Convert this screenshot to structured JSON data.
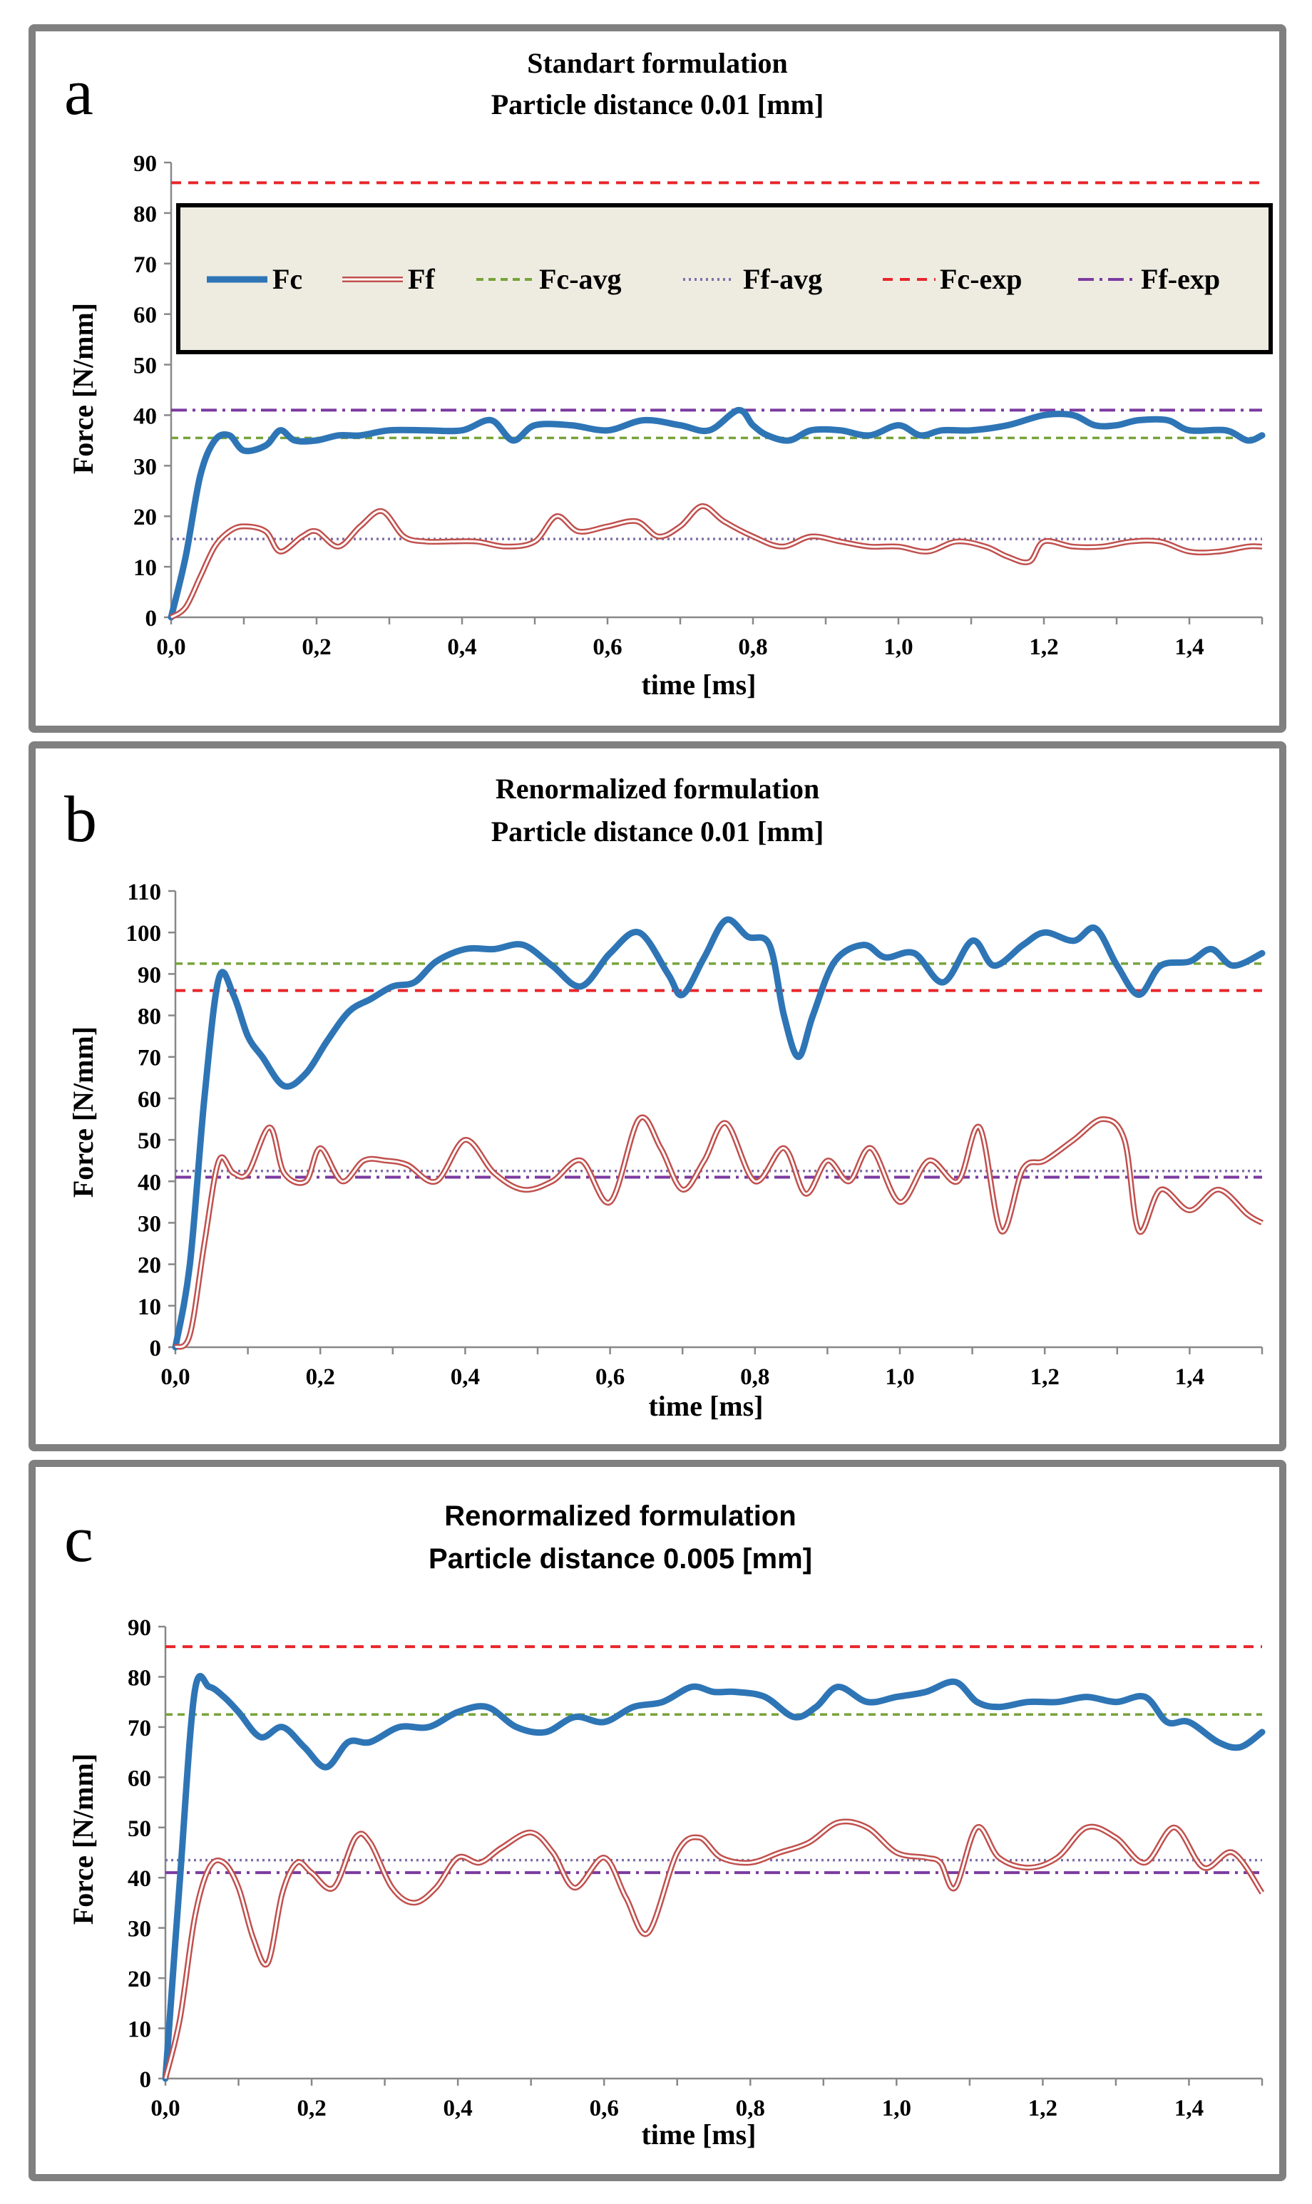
{
  "panels": [
    {
      "letter": "a",
      "title_line1": "Standart formulation",
      "title_line2": "Particle distance 0.01 [mm]",
      "title_font": "serif",
      "ylabel": "Force [N/mm]",
      "xlabel": "time [ms]",
      "show_legend": true
    },
    {
      "letter": "b",
      "title_line1": "Renormalized formulation",
      "title_line2": "Particle distance 0.01 [mm]",
      "title_font": "serif",
      "ylabel": "Force [N/mm]",
      "xlabel": "time [ms]",
      "show_legend": false
    },
    {
      "letter": "c",
      "title_line1": "Renormalized formulation",
      "title_line2": "Particle distance 0.005 [mm]",
      "title_font": "sans",
      "ylabel": "Force [N/mm]",
      "xlabel": "time [ms]",
      "show_legend": false
    }
  ],
  "legend": {
    "entries": [
      {
        "key": "Fc",
        "label": "Fc"
      },
      {
        "key": "Ff",
        "label": "Ff"
      },
      {
        "key": "Fc_avg",
        "label": "Fc-avg"
      },
      {
        "key": "Ff_avg",
        "label": "Ff-avg"
      },
      {
        "key": "Fc_exp",
        "label": "Fc-exp"
      },
      {
        "key": "Ff_exp",
        "label": "Ff-exp"
      }
    ]
  },
  "colors": {
    "Fc": "#2e75b6",
    "Ff": "#c0504d",
    "Fc_avg": "#77a33a",
    "Ff_avg": "#7f6fa8",
    "Fc_exp": "#e8262b",
    "Ff_exp": "#7b3aa0",
    "legend_bg": "#eeece1",
    "frame": "#808080"
  },
  "chart_data": [
    {
      "type": "line",
      "title": "Standart formulation Particle distance 0.01 [mm]",
      "xlabel": "time [ms]",
      "ylabel": "Force [N/mm]",
      "xlim": [
        0,
        1.5
      ],
      "ylim": [
        0,
        90
      ],
      "xticks": [
        "0,0",
        "0,2",
        "0,4",
        "0,6",
        "0,8",
        "1,0",
        "1,2",
        "1,4"
      ],
      "yticks": [
        "0",
        "10",
        "20",
        "30",
        "40",
        "50",
        "60",
        "70",
        "80",
        "90"
      ],
      "reference_lines": {
        "Fc_avg": 35.5,
        "Ff_avg": 15.5,
        "Fc_exp": 86,
        "Ff_exp": 41
      },
      "series": [
        {
          "name": "Fc",
          "x": [
            0,
            0.02,
            0.04,
            0.06,
            0.08,
            0.1,
            0.13,
            0.15,
            0.17,
            0.2,
            0.23,
            0.26,
            0.3,
            0.35,
            0.4,
            0.44,
            0.47,
            0.5,
            0.55,
            0.6,
            0.65,
            0.7,
            0.74,
            0.78,
            0.8,
            0.82,
            0.85,
            0.88,
            0.92,
            0.96,
            1.0,
            1.03,
            1.06,
            1.1,
            1.15,
            1.2,
            1.24,
            1.27,
            1.3,
            1.33,
            1.37,
            1.4,
            1.45,
            1.48,
            1.5
          ],
          "y": [
            0,
            12,
            28,
            35,
            36,
            33,
            34,
            37,
            35,
            35,
            36,
            36,
            37,
            37,
            37,
            39,
            35,
            38,
            38,
            37,
            39,
            38,
            37,
            41,
            38,
            36,
            35,
            37,
            37,
            36,
            38,
            36,
            37,
            37,
            38,
            40,
            40,
            38,
            38,
            39,
            39,
            37,
            37,
            35,
            36
          ]
        },
        {
          "name": "Ff",
          "x": [
            0,
            0.02,
            0.04,
            0.06,
            0.08,
            0.1,
            0.13,
            0.15,
            0.18,
            0.2,
            0.23,
            0.26,
            0.29,
            0.32,
            0.35,
            0.38,
            0.42,
            0.46,
            0.5,
            0.53,
            0.56,
            0.6,
            0.64,
            0.67,
            0.7,
            0.73,
            0.76,
            0.8,
            0.84,
            0.88,
            0.92,
            0.96,
            1.0,
            1.04,
            1.08,
            1.12,
            1.15,
            1.18,
            1.2,
            1.24,
            1.28,
            1.32,
            1.36,
            1.4,
            1.44,
            1.48,
            1.5
          ],
          "y": [
            0,
            2,
            8,
            14,
            17,
            18,
            17,
            13,
            16,
            17,
            14,
            18,
            21,
            16,
            15,
            15,
            15,
            14,
            15,
            20,
            17,
            18,
            19,
            16,
            18,
            22,
            19,
            16,
            14,
            16,
            15,
            14,
            14,
            13,
            15,
            14,
            12,
            11,
            15,
            14,
            14,
            15,
            15,
            13,
            13,
            14,
            14
          ]
        }
      ]
    },
    {
      "type": "line",
      "title": "Renormalized formulation Particle distance 0.01 [mm]",
      "xlabel": "time [ms]",
      "ylabel": "Force [N/mm]",
      "xlim": [
        0,
        1.5
      ],
      "ylim": [
        0,
        110
      ],
      "xticks": [
        "0,0",
        "0,2",
        "0,4",
        "0,6",
        "0,8",
        "1,0",
        "1,2",
        "1,4"
      ],
      "yticks": [
        "0",
        "10",
        "20",
        "30",
        "40",
        "50",
        "60",
        "70",
        "80",
        "90",
        "100",
        "110"
      ],
      "reference_lines": {
        "Fc_avg": 92.5,
        "Ff_avg": 42.5,
        "Fc_exp": 86,
        "Ff_exp": 41
      },
      "series": [
        {
          "name": "Fc",
          "x": [
            0,
            0.02,
            0.04,
            0.06,
            0.08,
            0.1,
            0.12,
            0.15,
            0.18,
            0.21,
            0.24,
            0.27,
            0.3,
            0.33,
            0.36,
            0.4,
            0.44,
            0.48,
            0.52,
            0.56,
            0.6,
            0.64,
            0.68,
            0.7,
            0.73,
            0.76,
            0.79,
            0.82,
            0.84,
            0.86,
            0.88,
            0.91,
            0.95,
            0.98,
            1.02,
            1.06,
            1.1,
            1.13,
            1.17,
            1.2,
            1.24,
            1.27,
            1.3,
            1.33,
            1.36,
            1.4,
            1.43,
            1.46,
            1.5
          ],
          "y": [
            0,
            20,
            60,
            89,
            85,
            75,
            70,
            63,
            66,
            74,
            81,
            84,
            87,
            88,
            93,
            96,
            96,
            97,
            92,
            87,
            95,
            100,
            90,
            85,
            94,
            103,
            99,
            97,
            80,
            70,
            80,
            93,
            97,
            94,
            95,
            88,
            98,
            92,
            97,
            100,
            98,
            101,
            92,
            85,
            92,
            93,
            96,
            92,
            95
          ]
        },
        {
          "name": "Ff",
          "x": [
            0,
            0.02,
            0.04,
            0.06,
            0.08,
            0.1,
            0.13,
            0.15,
            0.18,
            0.2,
            0.23,
            0.26,
            0.29,
            0.32,
            0.36,
            0.4,
            0.44,
            0.48,
            0.52,
            0.56,
            0.6,
            0.64,
            0.67,
            0.7,
            0.73,
            0.76,
            0.8,
            0.84,
            0.87,
            0.9,
            0.93,
            0.96,
            1.0,
            1.04,
            1.08,
            1.11,
            1.14,
            1.17,
            1.2,
            1.24,
            1.28,
            1.31,
            1.33,
            1.36,
            1.4,
            1.44,
            1.48,
            1.5
          ],
          "y": [
            0,
            3,
            25,
            45,
            42,
            42,
            53,
            42,
            40,
            48,
            40,
            45,
            45,
            44,
            40,
            50,
            42,
            38,
            40,
            45,
            35,
            55,
            48,
            38,
            45,
            54,
            40,
            48,
            37,
            45,
            40,
            48,
            35,
            45,
            40,
            53,
            28,
            43,
            45,
            50,
            55,
            50,
            28,
            38,
            33,
            38,
            32,
            30
          ]
        }
      ]
    },
    {
      "type": "line",
      "title": "Renormalized formulation Particle distance 0.005 [mm]",
      "xlabel": "time [ms]",
      "ylabel": "Force [N/mm]",
      "xlim": [
        0,
        1.5
      ],
      "ylim": [
        0,
        90
      ],
      "xticks": [
        "0,0",
        "0,2",
        "0,4",
        "0,6",
        "0,8",
        "1,0",
        "1,2",
        "1,4"
      ],
      "yticks": [
        "0",
        "10",
        "20",
        "30",
        "40",
        "50",
        "60",
        "70",
        "80",
        "90"
      ],
      "reference_lines": {
        "Fc_avg": 72.5,
        "Ff_avg": 43.5,
        "Fc_exp": 86,
        "Ff_exp": 41
      },
      "series": [
        {
          "name": "Fc",
          "x": [
            0,
            0.02,
            0.04,
            0.06,
            0.08,
            0.1,
            0.13,
            0.16,
            0.19,
            0.22,
            0.25,
            0.28,
            0.32,
            0.36,
            0.4,
            0.44,
            0.48,
            0.52,
            0.56,
            0.6,
            0.64,
            0.68,
            0.72,
            0.75,
            0.78,
            0.82,
            0.86,
            0.89,
            0.92,
            0.96,
            1.0,
            1.04,
            1.08,
            1.11,
            1.14,
            1.18,
            1.22,
            1.26,
            1.3,
            1.34,
            1.37,
            1.4,
            1.44,
            1.47,
            1.5
          ],
          "y": [
            0,
            40,
            77,
            78,
            76,
            73,
            68,
            70,
            66,
            62,
            67,
            67,
            70,
            70,
            73,
            74,
            70,
            69,
            72,
            71,
            74,
            75,
            78,
            77,
            77,
            76,
            72,
            74,
            78,
            75,
            76,
            77,
            79,
            75,
            74,
            75,
            75,
            76,
            75,
            76,
            71,
            71,
            67,
            66,
            69
          ]
        },
        {
          "name": "Ff",
          "x": [
            0,
            0.02,
            0.04,
            0.06,
            0.08,
            0.1,
            0.12,
            0.14,
            0.16,
            0.18,
            0.2,
            0.23,
            0.26,
            0.28,
            0.31,
            0.34,
            0.37,
            0.4,
            0.43,
            0.46,
            0.5,
            0.53,
            0.56,
            0.6,
            0.63,
            0.66,
            0.7,
            0.73,
            0.76,
            0.8,
            0.84,
            0.88,
            0.92,
            0.96,
            1.0,
            1.04,
            1.06,
            1.08,
            1.11,
            1.14,
            1.18,
            1.22,
            1.26,
            1.3,
            1.34,
            1.38,
            1.42,
            1.46,
            1.5
          ],
          "y": [
            0,
            12,
            32,
            42,
            43,
            38,
            28,
            23,
            37,
            43,
            41,
            38,
            48,
            47,
            38,
            35,
            38,
            44,
            43,
            46,
            49,
            45,
            38,
            44,
            36,
            29,
            45,
            48,
            44,
            43,
            45,
            47,
            51,
            50,
            45,
            44,
            43,
            38,
            50,
            44,
            42,
            44,
            50,
            48,
            43,
            50,
            42,
            45,
            37
          ]
        }
      ]
    }
  ]
}
